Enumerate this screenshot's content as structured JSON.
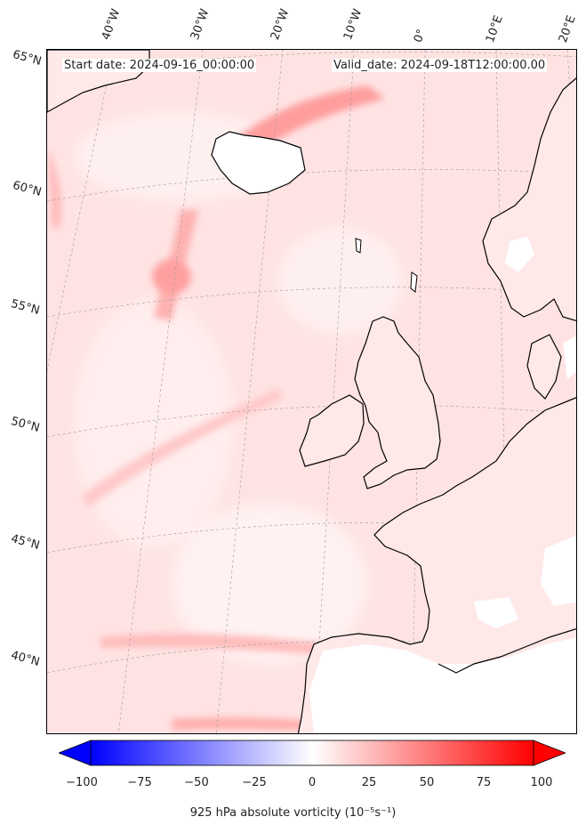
{
  "header": {
    "start_date": "Start date: 2024-09-16_00:00:00",
    "valid_date": "Valid_date: 2024-09-18T12:00:00.00"
  },
  "lon_labels": [
    "40°W",
    "30°W",
    "20°W",
    "10°W",
    "0°",
    "10°E",
    "20°E"
  ],
  "lat_labels": [
    "65°N",
    "60°N",
    "55°N",
    "50°N",
    "45°N",
    "40°N"
  ],
  "colorbar": {
    "ticks": [
      "−100",
      "−75",
      "−50",
      "−25",
      "0",
      "25",
      "50",
      "75",
      "100"
    ],
    "min": -100,
    "max": 100,
    "extend": "both",
    "cmap": "bwr",
    "title": "925 hPa absolute vorticity (10⁻⁵s⁻¹)"
  },
  "field": {
    "variable": "925 hPa absolute vorticity",
    "background_color": "#ffe3e3",
    "max_color": "#ff4040",
    "min_color": "#0000ff"
  }
}
